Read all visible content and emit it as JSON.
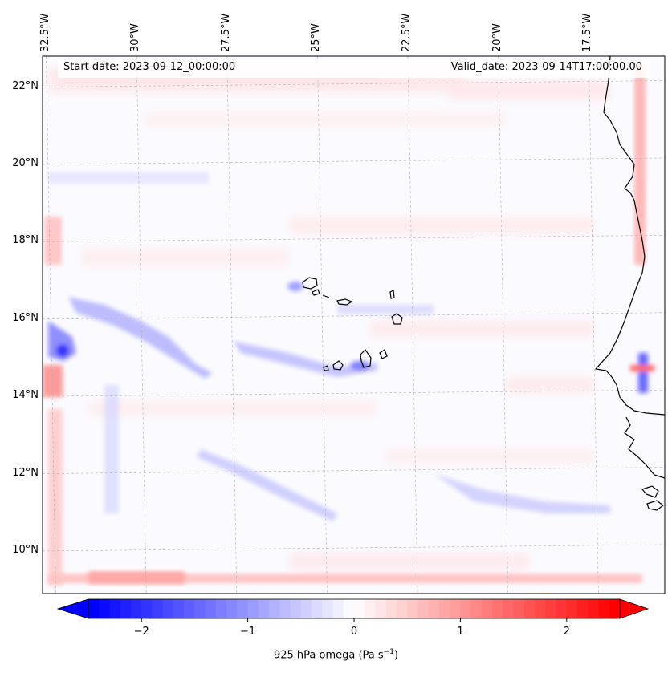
{
  "map": {
    "lon_labels": [
      "32.5°W",
      "30°W",
      "27.5°W",
      "25°W",
      "22.5°W",
      "20°W",
      "17.5°W"
    ],
    "lon_values": [
      -32.5,
      -30,
      -27.5,
      -25,
      -22.5,
      -20,
      -17.5
    ],
    "lat_labels": [
      "22°N",
      "20°N",
      "18°N",
      "16°N",
      "14°N",
      "12°N",
      "10°N"
    ],
    "lat_values": [
      22,
      20,
      18,
      16,
      14,
      12,
      10
    ],
    "extent": {
      "lon": [
        -32.6,
        -15.4
      ],
      "lat": [
        8.9,
        22.8
      ]
    },
    "start_date": "Start date: 2023-09-12_00:00:00",
    "valid_date": "Valid_date: 2023-09-14T17:00:00.00",
    "gridlines": true,
    "coastline_color": "#000000",
    "grid_color": "#b0b0b0"
  },
  "colorbar": {
    "ticks": [
      "−2",
      "−1",
      "0",
      "1",
      "2"
    ],
    "tick_values": [
      -2,
      -1,
      0,
      1,
      2
    ],
    "range": [
      -2.5,
      2.5
    ],
    "label": "925 hPa omega (Pa s",
    "label_sup": "−1",
    "label_end": ")",
    "cmap": "bwr",
    "low_color": "#0000ff",
    "mid_color": "#ffffff",
    "high_color": "#ff0000"
  }
}
